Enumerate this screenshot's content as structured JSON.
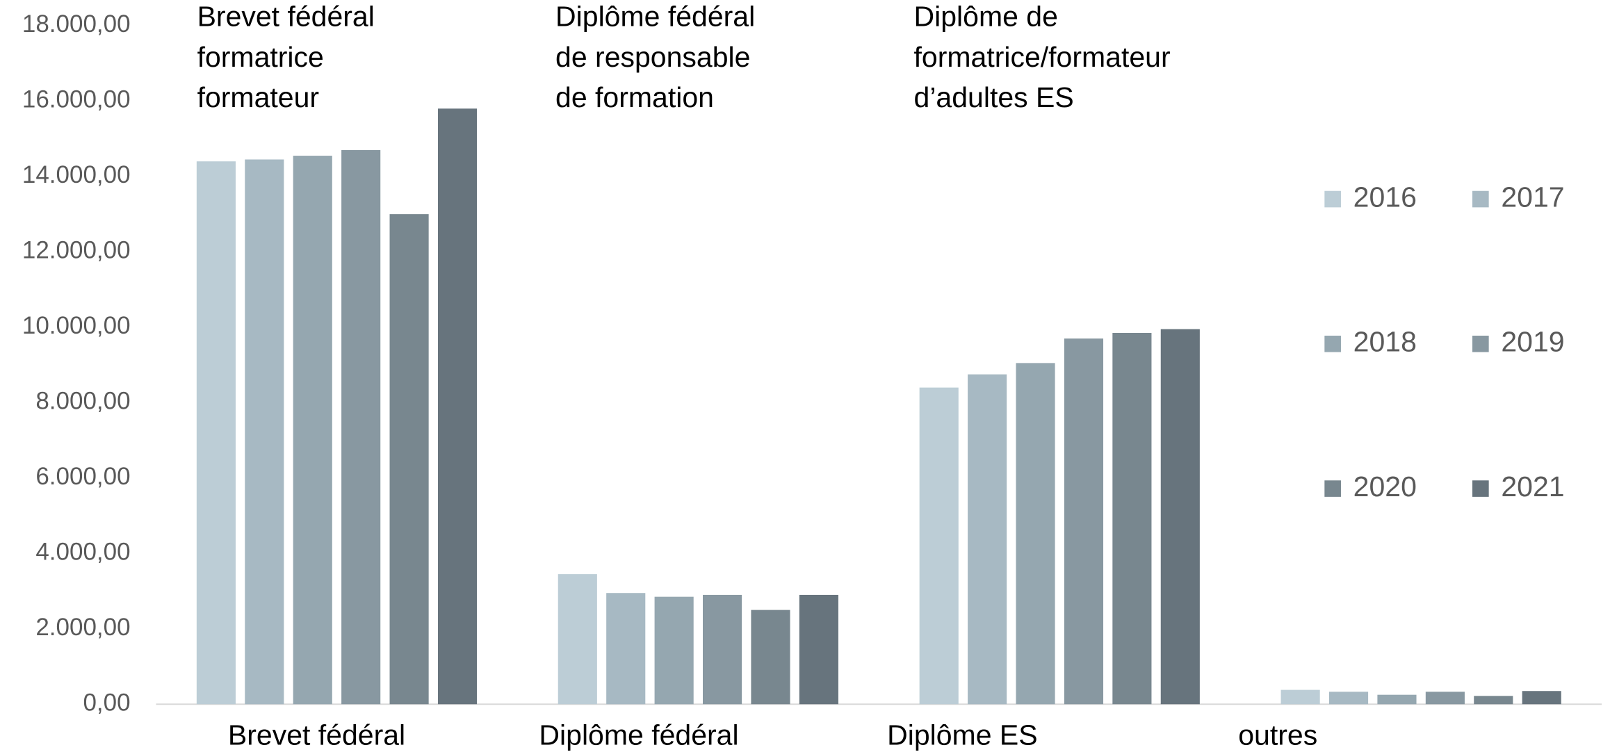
{
  "chart_data": {
    "type": "bar",
    "categories": [
      "Brevet fédéral",
      "Diplôme fédéral",
      "Diplôme ES",
      "outres"
    ],
    "series": [
      {
        "name": "2016",
        "color": "#bccdd6",
        "values": [
          14400,
          3450,
          8400,
          380
        ]
      },
      {
        "name": "2017",
        "color": "#a7b9c3",
        "values": [
          14450,
          2950,
          8750,
          330
        ]
      },
      {
        "name": "2018",
        "color": "#95a7b0",
        "values": [
          14550,
          2850,
          9050,
          250
        ]
      },
      {
        "name": "2019",
        "color": "#8898a1",
        "values": [
          14700,
          2900,
          9700,
          330
        ]
      },
      {
        "name": "2020",
        "color": "#78878f",
        "values": [
          13000,
          2500,
          9850,
          220
        ]
      },
      {
        "name": "2021",
        "color": "#67747d",
        "values": [
          15800,
          2900,
          9950,
          350
        ]
      }
    ],
    "annotations": [
      [
        "Brevet fédéral",
        "formatrice",
        "formateur"
      ],
      [
        "Diplôme fédéral",
        "de responsable",
        "de formation"
      ],
      [
        "Diplôme de",
        "formatrice/formateur",
        "d’adultes ES"
      ]
    ],
    "ylim": [
      0,
      18000
    ],
    "yticks": [
      {
        "value": 0,
        "label": "0,00"
      },
      {
        "value": 2000,
        "label": "2.000,00"
      },
      {
        "value": 4000,
        "label": "4.000,00"
      },
      {
        "value": 6000,
        "label": "6.000,00"
      },
      {
        "value": 8000,
        "label": "8.000,00"
      },
      {
        "value": 10000,
        "label": "10.000,00"
      },
      {
        "value": 12000,
        "label": "12.000,00"
      },
      {
        "value": 14000,
        "label": "14.000,00"
      },
      {
        "value": 16000,
        "label": "16.000,00"
      },
      {
        "value": 18000,
        "label": "18.000,00"
      }
    ],
    "grid": false,
    "legend": "right"
  }
}
